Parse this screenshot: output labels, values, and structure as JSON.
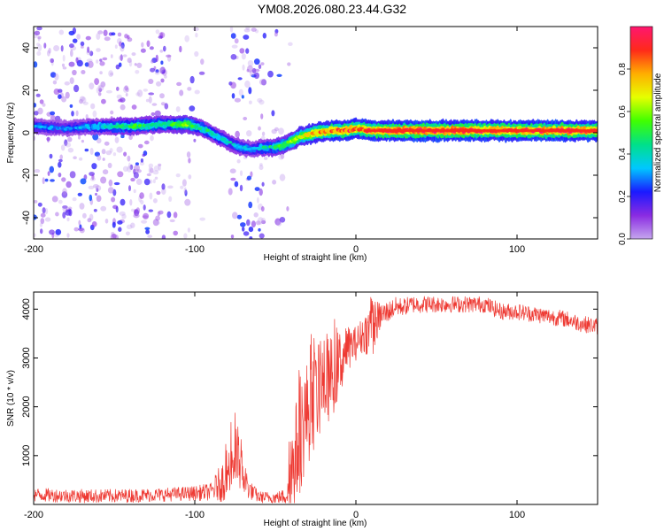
{
  "title": "YM08.2026.080.23.44.G32",
  "colors": {
    "line": "#ee3a33",
    "axis": "#000000",
    "background": "#ffffff",
    "colorbar_stops": [
      "#c5a6ee",
      "#8a2be2",
      "#1a1aff",
      "#00c8ff",
      "#00e08a",
      "#40ff00",
      "#e6ff00",
      "#ffae00",
      "#ff2a1a",
      "#ff1670"
    ]
  },
  "chart_data": [
    {
      "type": "heatmap",
      "name": "spectrogram",
      "xlabel": "Height of straight line (km)",
      "ylabel": "Frequency (Hz)",
      "xlim": [
        -200,
        150
      ],
      "ylim": [
        -50,
        50
      ],
      "xticks": [
        -200,
        -100,
        0,
        100
      ],
      "xtick_labels": [
        "-200",
        "-100",
        "0",
        "100"
      ],
      "yticks": [
        -40,
        -20,
        0,
        20,
        40
      ],
      "ytick_labels": [
        "-40",
        "-20",
        "0",
        "20",
        "40"
      ],
      "colorbar": {
        "label": "Normalized spectral amplitude",
        "range": [
          0,
          1
        ],
        "ticks": [
          0.0,
          0.2,
          0.4,
          0.6,
          0.8
        ],
        "tick_labels": [
          "0.0",
          "0.2",
          "0.4",
          "0.6",
          "0.8"
        ]
      },
      "ridge": {
        "x": [
          -200,
          -180,
          -160,
          -140,
          -120,
          -105,
          -95,
          -85,
          -75,
          -65,
          -58,
          -52,
          -45,
          -35,
          -25,
          -15,
          -5,
          0,
          10,
          30,
          60,
          90,
          120,
          150
        ],
        "frequency": [
          3,
          2,
          3,
          3,
          4,
          4,
          2,
          -2,
          -6,
          -8,
          -7,
          -7,
          -6,
          -2,
          0,
          1,
          1,
          2,
          1,
          1,
          1,
          1,
          1,
          1
        ],
        "amplitude": [
          0.35,
          0.3,
          0.4,
          0.55,
          0.5,
          0.6,
          0.5,
          0.45,
          0.4,
          0.35,
          0.45,
          0.5,
          0.6,
          0.7,
          0.85,
          0.9,
          0.95,
          0.9,
          0.95,
          1.0,
          1.0,
          0.95,
          1.0,
          0.95
        ]
      },
      "noise_bands": [
        {
          "x": [
            -200,
            -118
          ],
          "density": 1.0
        },
        {
          "x": [
            -118,
            -95
          ],
          "density": 0.35
        },
        {
          "x": [
            -78,
            -57
          ],
          "density": 0.9
        },
        {
          "x": [
            -57,
            -40
          ],
          "density": 0.25
        }
      ]
    },
    {
      "type": "line",
      "name": "snr",
      "xlabel": "Height of straight line (km)",
      "ylabel": "SNR (10 * v/v)",
      "xlim": [
        -200,
        150
      ],
      "ylim": [
        0,
        4350
      ],
      "xticks": [
        -200,
        -100,
        0,
        100
      ],
      "xtick_labels": [
        "-200",
        "-100",
        "0",
        "100"
      ],
      "yticks": [
        1000,
        2000,
        3000,
        4000
      ],
      "ytick_labels": [
        "1000",
        "2000",
        "3000",
        "4000"
      ],
      "series": [
        {
          "name": "SNR",
          "x": [
            -200,
            -180,
            -160,
            -140,
            -120,
            -100,
            -90,
            -82,
            -78,
            -74,
            -70,
            -66,
            -60,
            -50,
            -45,
            -40,
            -35,
            -30,
            -25,
            -20,
            -15,
            -10,
            -5,
            0,
            5,
            10,
            15,
            20,
            25,
            30,
            35,
            40,
            50,
            60,
            70,
            80,
            90,
            100,
            110,
            120,
            130,
            140,
            150
          ],
          "values": [
            200,
            180,
            170,
            180,
            200,
            230,
            260,
            500,
            800,
            1000,
            600,
            300,
            150,
            140,
            160,
            600,
            1400,
            1900,
            2200,
            2500,
            2600,
            2900,
            3200,
            3300,
            3500,
            3600,
            3850,
            3950,
            4050,
            4050,
            4100,
            4100,
            4100,
            4100,
            4100,
            4100,
            3950,
            3950,
            3900,
            3850,
            3800,
            3700,
            3650
          ],
          "noise": [
            140,
            140,
            140,
            140,
            140,
            150,
            180,
            450,
            650,
            750,
            450,
            200,
            120,
            120,
            150,
            900,
            1200,
            1100,
            1000,
            900,
            850,
            700,
            450,
            350,
            400,
            600,
            300,
            220,
            200,
            180,
            180,
            180,
            170,
            170,
            170,
            170,
            170,
            170,
            170,
            170,
            170,
            170,
            170
          ]
        }
      ]
    }
  ]
}
